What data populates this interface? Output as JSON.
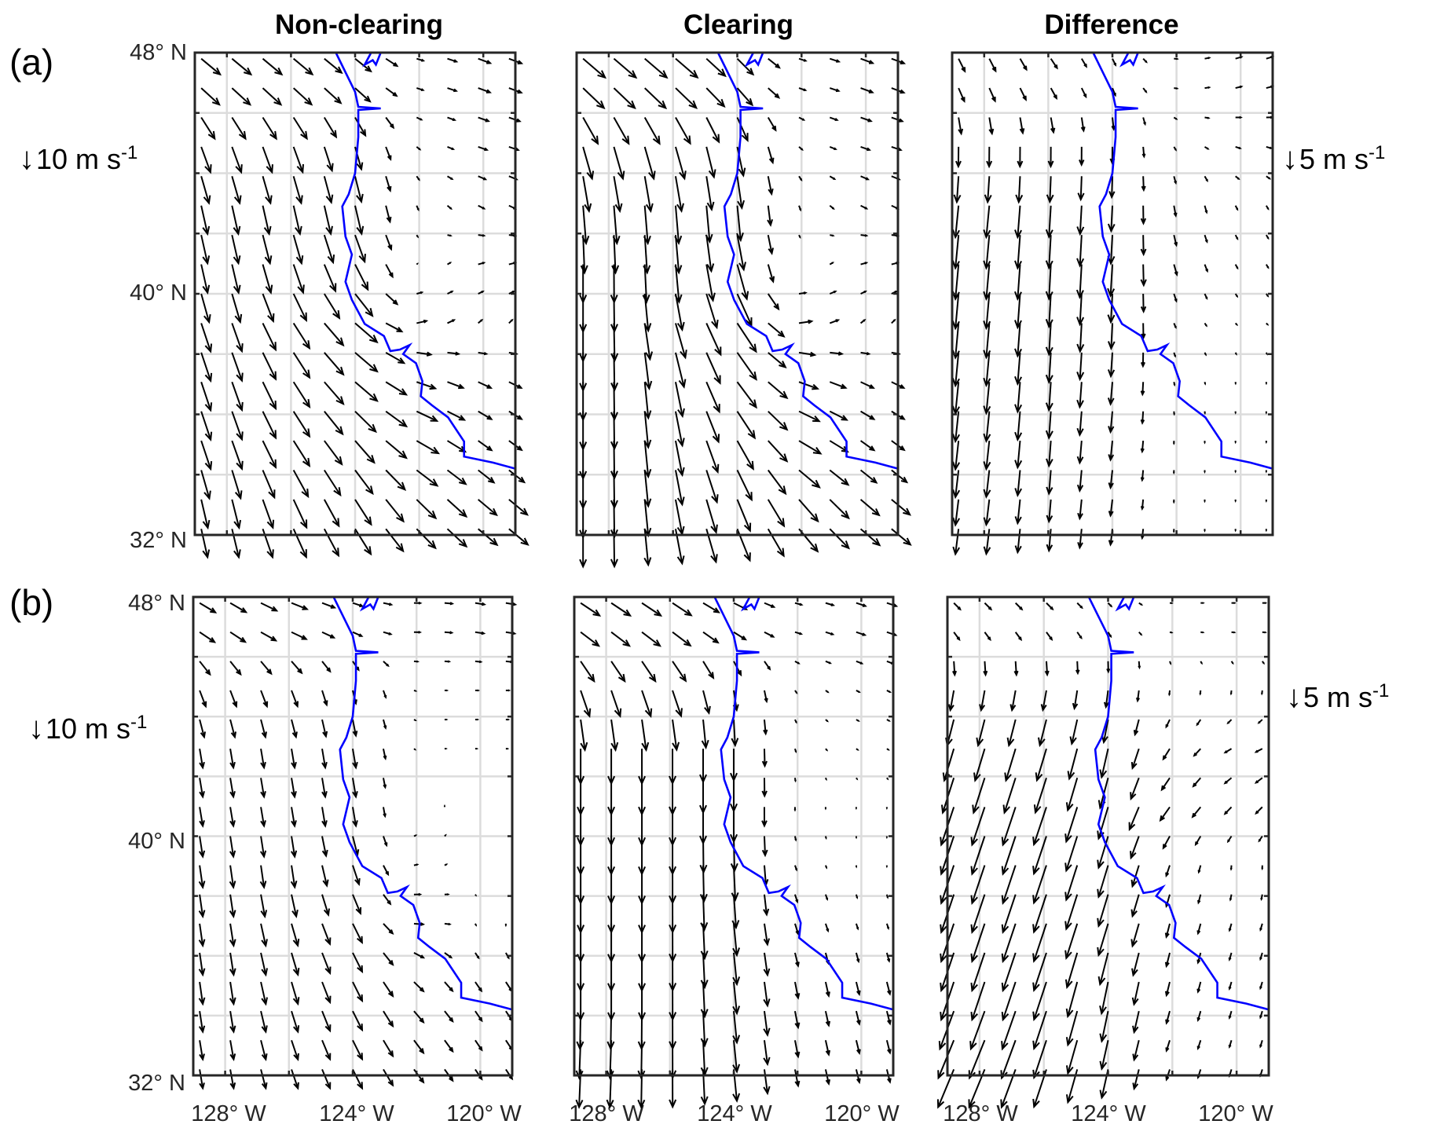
{
  "column_titles": [
    "Non-clearing",
    "Clearing",
    "Difference"
  ],
  "row_labels": [
    "(a)",
    "(b)"
  ],
  "lat_ticks": [
    "48° N",
    "40° N",
    "32° N"
  ],
  "lon_ticks": [
    "128° W",
    "124° W",
    "120° W"
  ],
  "reference_arrows": {
    "a_left": {
      "value": "10 m s",
      "exp": "-1"
    },
    "a_right": {
      "value": "5 m s",
      "exp": "-1"
    },
    "b_left": {
      "value": "10 m s",
      "exp": "-1"
    },
    "b_right": {
      "value": "5 m s",
      "exp": "-1"
    }
  },
  "chart_data": {
    "type": "quiver",
    "xlim": [
      -129,
      -119
    ],
    "ylim": [
      32,
      48
    ],
    "grid": true,
    "coast_color": "#0000ff",
    "arrow_color": "#000000",
    "grid_lon": [
      -128,
      -126,
      -124,
      -122,
      -120
    ],
    "grid_lat": [
      47,
      45,
      43,
      41,
      39,
      37,
      35,
      33
    ],
    "coastline": [
      [
        -124.6,
        48
      ],
      [
        -124.0,
        46.7
      ],
      [
        -123.9,
        46.2
      ],
      [
        -123.2,
        46.15
      ],
      [
        -123.9,
        46.1
      ],
      [
        -123.9,
        45.2
      ],
      [
        -124.0,
        44.0
      ],
      [
        -124.2,
        43.3
      ],
      [
        -124.4,
        42.9
      ],
      [
        -124.3,
        41.9
      ],
      [
        -124.1,
        41.3
      ],
      [
        -124.3,
        40.4
      ],
      [
        -124.1,
        39.8
      ],
      [
        -123.7,
        39.0
      ],
      [
        -123.1,
        38.6
      ],
      [
        -122.9,
        38.1
      ],
      [
        -122.6,
        38.15
      ],
      [
        -122.3,
        38.3
      ],
      [
        -122.5,
        38.0
      ],
      [
        -122.1,
        37.7
      ],
      [
        -121.9,
        37.1
      ],
      [
        -121.95,
        36.6
      ],
      [
        -121.6,
        36.3
      ],
      [
        -121.1,
        35.9
      ],
      [
        -120.6,
        35.1
      ],
      [
        -120.6,
        34.6
      ],
      [
        -119.7,
        34.4
      ],
      [
        -119.0,
        34.2
      ]
    ],
    "inlet": [
      [
        -123.5,
        48
      ],
      [
        -123.7,
        47.6
      ],
      [
        -123.45,
        47.75
      ],
      [
        -123.35,
        47.6
      ],
      [
        -123.2,
        48
      ]
    ],
    "panels": [
      {
        "row": "a",
        "column": "Non-clearing",
        "ref_ms": 10,
        "uv": [
          [
            [
              6,
              -5
            ],
            [
              6,
              -5
            ],
            [
              5,
              -4
            ],
            [
              2,
              -0.5
            ],
            [
              4,
              -1.5
            ]
          ],
          [
            [
              3,
              -8
            ],
            [
              3,
              -8
            ],
            [
              2,
              -7
            ],
            [
              1,
              -0.5
            ],
            [
              3,
              -1
            ]
          ],
          [
            [
              2,
              -9
            ],
            [
              2,
              -9
            ],
            [
              2,
              -9
            ],
            [
              0.5,
              -1
            ],
            [
              2,
              -1
            ]
          ],
          [
            [
              2,
              -9
            ],
            [
              3,
              -9
            ],
            [
              4,
              -8
            ],
            [
              0,
              0.5
            ],
            [
              2,
              0.5
            ]
          ],
          [
            [
              3,
              -9
            ],
            [
              5,
              -8
            ],
            [
              7,
              -6
            ],
            [
              3,
              1
            ],
            [
              1,
              1
            ]
          ],
          [
            [
              3,
              -9
            ],
            [
              5,
              -8
            ],
            [
              7,
              -6
            ],
            [
              6,
              -2
            ],
            [
              4,
              -2
            ]
          ],
          [
            [
              3,
              -9
            ],
            [
              5,
              -8
            ],
            [
              6,
              -7
            ],
            [
              7,
              -4
            ],
            [
              4,
              -3
            ]
          ],
          [
            [
              2,
              -9
            ],
            [
              4,
              -9
            ],
            [
              5,
              -8
            ],
            [
              6,
              -6
            ],
            [
              6,
              -5
            ]
          ]
        ]
      },
      {
        "row": "a",
        "column": "Clearing",
        "ref_ms": 10,
        "uv": [
          [
            [
              7,
              -6
            ],
            [
              7,
              -6
            ],
            [
              5,
              -5
            ],
            [
              2,
              -0.5
            ],
            [
              4,
              -1.5
            ]
          ],
          [
            [
              3,
              -10
            ],
            [
              3,
              -10
            ],
            [
              2,
              -9
            ],
            [
              1,
              -0.5
            ],
            [
              3,
              -1
            ]
          ],
          [
            [
              1,
              -12
            ],
            [
              1,
              -12
            ],
            [
              1,
              -11
            ],
            [
              0.5,
              -1
            ],
            [
              2,
              -1
            ]
          ],
          [
            [
              0,
              -12
            ],
            [
              1,
              -12
            ],
            [
              3,
              -11
            ],
            [
              0,
              0.5
            ],
            [
              2,
              0.5
            ]
          ],
          [
            [
              0,
              -12
            ],
            [
              3,
              -11
            ],
            [
              6,
              -9
            ],
            [
              4,
              1
            ],
            [
              1,
              1
            ]
          ],
          [
            [
              0,
              -12
            ],
            [
              2,
              -11
            ],
            [
              6,
              -8
            ],
            [
              6,
              -2
            ],
            [
              4,
              -2
            ]
          ],
          [
            [
              0,
              -12
            ],
            [
              2,
              -11
            ],
            [
              5,
              -9
            ],
            [
              7,
              -4
            ],
            [
              4,
              -3
            ]
          ],
          [
            [
              0,
              -12
            ],
            [
              2,
              -11
            ],
            [
              4,
              -10
            ],
            [
              6,
              -7
            ],
            [
              6,
              -5
            ]
          ]
        ]
      },
      {
        "row": "a",
        "column": "Difference",
        "ref_ms": 5,
        "uv": [
          [
            [
              1,
              -2
            ],
            [
              1,
              -1.5
            ],
            [
              0.5,
              -1
            ],
            [
              0.5,
              0
            ],
            [
              1,
              0.3
            ]
          ],
          [
            [
              0,
              -3
            ],
            [
              0,
              -3
            ],
            [
              0,
              -2.5
            ],
            [
              0.3,
              -0.3
            ],
            [
              0.8,
              -0.2
            ]
          ],
          [
            [
              -0.5,
              -5
            ],
            [
              -0.3,
              -5
            ],
            [
              -0.2,
              -4
            ],
            [
              0.3,
              -1.5
            ],
            [
              0.3,
              -0.5
            ]
          ],
          [
            [
              -0.5,
              -5.5
            ],
            [
              -0.3,
              -5.5
            ],
            [
              -0.3,
              -5
            ],
            [
              0.5,
              -1.5
            ],
            [
              0.3,
              -0.5
            ]
          ],
          [
            [
              -0.5,
              -5.5
            ],
            [
              -0.3,
              -5
            ],
            [
              -0.2,
              -4
            ],
            [
              0.3,
              -0.5
            ],
            [
              0.2,
              -0.2
            ]
          ],
          [
            [
              -0.5,
              -5
            ],
            [
              -0.3,
              -4.5
            ],
            [
              -0.3,
              -3.5
            ],
            [
              0.1,
              -0.3
            ],
            [
              0,
              -0.2
            ]
          ],
          [
            [
              -0.5,
              -4.5
            ],
            [
              -0.3,
              -4
            ],
            [
              -0.3,
              -3
            ],
            [
              0,
              -0.3
            ],
            [
              0,
              -0.2
            ]
          ],
          [
            [
              -0.5,
              -4
            ],
            [
              -0.3,
              -3.5
            ],
            [
              -0.3,
              -2.5
            ],
            [
              0,
              -0.3
            ],
            [
              0,
              -0.2
            ]
          ]
        ]
      },
      {
        "row": "b",
        "column": "Non-clearing",
        "ref_ms": 10,
        "uv": [
          [
            [
              5,
              -3
            ],
            [
              5,
              -2
            ],
            [
              3,
              -1
            ],
            [
              2,
              0
            ],
            [
              3,
              -0.5
            ]
          ],
          [
            [
              2,
              -5
            ],
            [
              2,
              -5
            ],
            [
              1,
              -4
            ],
            [
              0.5,
              0
            ],
            [
              1,
              0
            ]
          ],
          [
            [
              1,
              -6
            ],
            [
              1,
              -6
            ],
            [
              1,
              -6
            ],
            [
              0.3,
              0
            ],
            [
              0.5,
              0
            ]
          ],
          [
            [
              1,
              -6
            ],
            [
              1,
              -6
            ],
            [
              1,
              -6
            ],
            [
              0,
              0.5
            ],
            [
              0,
              0
            ]
          ],
          [
            [
              1,
              -7
            ],
            [
              1,
              -7
            ],
            [
              2,
              -6
            ],
            [
              1,
              0.5
            ],
            [
              0,
              0
            ]
          ],
          [
            [
              1,
              -7
            ],
            [
              2,
              -7
            ],
            [
              3,
              -6
            ],
            [
              3,
              0
            ],
            [
              0,
              -0.5
            ]
          ],
          [
            [
              1,
              -7
            ],
            [
              2,
              -7
            ],
            [
              3,
              -6
            ],
            [
              3,
              -3
            ],
            [
              2,
              -3
            ]
          ],
          [
            [
              1,
              -6
            ],
            [
              2,
              -6
            ],
            [
              3,
              -6
            ],
            [
              3,
              -4
            ],
            [
              2,
              -3
            ]
          ]
        ]
      },
      {
        "row": "b",
        "column": "Clearing",
        "ref_ms": 10,
        "uv": [
          [
            [
              6,
              -4
            ],
            [
              6,
              -4
            ],
            [
              4,
              -2
            ],
            [
              2,
              -0.5
            ],
            [
              3,
              -1
            ]
          ],
          [
            [
              3,
              -8
            ],
            [
              3,
              -8
            ],
            [
              1,
              -6
            ],
            [
              0.5,
              -0.5
            ],
            [
              1,
              -0.5
            ]
          ],
          [
            [
              0,
              -11
            ],
            [
              0,
              -11
            ],
            [
              0,
              -10
            ],
            [
              0.3,
              -0.5
            ],
            [
              0.5,
              -0.3
            ]
          ],
          [
            [
              0,
              -12
            ],
            [
              0,
              -12
            ],
            [
              0,
              -11
            ],
            [
              0,
              -0.5
            ],
            [
              0,
              -0.3
            ]
          ],
          [
            [
              0,
              -12
            ],
            [
              0,
              -12
            ],
            [
              0.5,
              -11
            ],
            [
              0.5,
              -1
            ],
            [
              0,
              -0.3
            ]
          ],
          [
            [
              0,
              -12
            ],
            [
              0,
              -12
            ],
            [
              1,
              -10
            ],
            [
              1,
              -3
            ],
            [
              0.5,
              -1.5
            ]
          ],
          [
            [
              0,
              -12
            ],
            [
              0,
              -12
            ],
            [
              1,
              -10
            ],
            [
              1,
              -5
            ],
            [
              1,
              -4
            ]
          ],
          [
            [
              -0.5,
              -12
            ],
            [
              0,
              -12
            ],
            [
              1,
              -10
            ],
            [
              1,
              -5
            ],
            [
              1,
              -4
            ]
          ]
        ]
      },
      {
        "row": "b",
        "column": "Difference",
        "ref_ms": 5,
        "uv": [
          [
            [
              1,
              -1
            ],
            [
              1,
              -1
            ],
            [
              0.5,
              -0.5
            ],
            [
              0.3,
              0
            ],
            [
              0.5,
              0
            ]
          ],
          [
            [
              -0.5,
              -3
            ],
            [
              -0.5,
              -3
            ],
            [
              -0.3,
              -2.5
            ],
            [
              0,
              -0.5
            ],
            [
              0,
              -0.5
            ]
          ],
          [
            [
              -1.5,
              -5
            ],
            [
              -1.5,
              -5
            ],
            [
              -1,
              -4.5
            ],
            [
              -1,
              -1.5
            ],
            [
              -1,
              -0.5
            ]
          ],
          [
            [
              -2,
              -6
            ],
            [
              -2,
              -6
            ],
            [
              -1.5,
              -5
            ],
            [
              -1.5,
              -2
            ],
            [
              -1,
              -1
            ]
          ],
          [
            [
              -2,
              -6
            ],
            [
              -2,
              -6
            ],
            [
              -1.5,
              -5
            ],
            [
              -0.5,
              -1.5
            ],
            [
              0,
              -0.5
            ]
          ],
          [
            [
              -2,
              -6
            ],
            [
              -2,
              -6
            ],
            [
              -1.5,
              -5
            ],
            [
              -0.5,
              -2
            ],
            [
              -0.3,
              -1
            ]
          ],
          [
            [
              -2,
              -6
            ],
            [
              -2,
              -6
            ],
            [
              -1,
              -5
            ],
            [
              -0.5,
              -2
            ],
            [
              -0.3,
              -1
            ]
          ],
          [
            [
              -2.5,
              -6
            ],
            [
              -2,
              -6
            ],
            [
              -1,
              -4.5
            ],
            [
              -0.5,
              -1.5
            ],
            [
              -0.3,
              -1
            ]
          ]
        ]
      }
    ]
  }
}
